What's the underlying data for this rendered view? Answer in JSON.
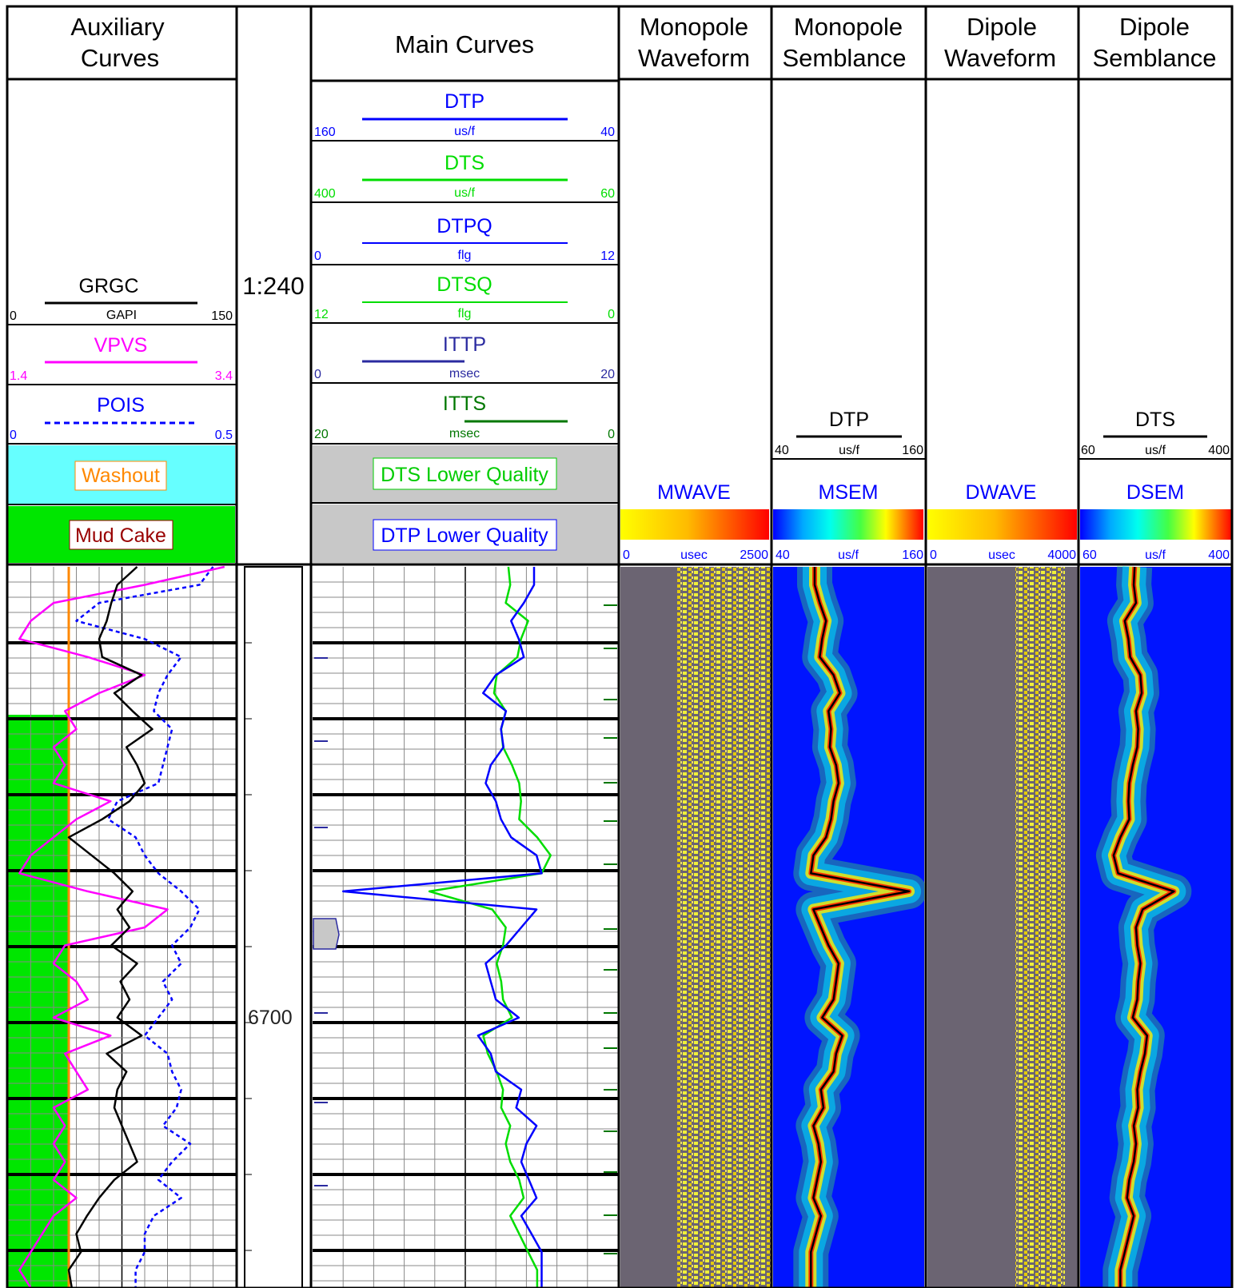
{
  "tracks": {
    "auxiliary": {
      "title_line1": "Auxiliary",
      "title_line2": "Curves"
    },
    "depth": {
      "scale": "1:240",
      "depth_label": "6700"
    },
    "main": {
      "title": "Main Curves"
    },
    "monopole_waveform": {
      "title_line1": "Monopole",
      "title_line2": "Waveform"
    },
    "monopole_semblance": {
      "title_line1": "Monopole",
      "title_line2": "Semblance"
    },
    "dipole_waveform": {
      "title_line1": "Dipole",
      "title_line2": "Waveform"
    },
    "dipole_semblance": {
      "title_line1": "Dipole",
      "title_line2": "Semblance"
    }
  },
  "aux_curves": [
    {
      "name": "GRGC",
      "unit": "GAPI",
      "min": "0",
      "max": "150",
      "color": "#000000"
    },
    {
      "name": "VPVS",
      "unit": "",
      "min": "1.4",
      "max": "3.4",
      "color": "#ff00ff"
    },
    {
      "name": "POIS",
      "unit": "",
      "min": "0",
      "max": "0.5",
      "color": "#0000ff"
    }
  ],
  "aux_flags": [
    {
      "label": "Washout",
      "fill": "#66ffff",
      "text_color": "#ff8800"
    },
    {
      "label": "Mud Cake",
      "fill": "#00e600",
      "text_color": "#990000"
    }
  ],
  "main_curves": [
    {
      "name": "DTP",
      "unit": "us/f",
      "min": "160",
      "max": "40",
      "color": "#0000ff"
    },
    {
      "name": "DTS",
      "unit": "us/f",
      "min": "400",
      "max": "60",
      "color": "#00dd00"
    },
    {
      "name": "DTPQ",
      "unit": "flg",
      "min": "0",
      "max": "12",
      "color": "#0000ff"
    },
    {
      "name": "DTSQ",
      "unit": "flg",
      "min": "12",
      "max": "0",
      "color": "#00dd00"
    },
    {
      "name": "ITTP",
      "unit": "msec",
      "min": "0",
      "max": "20",
      "color": "#2a2aa0"
    },
    {
      "name": "ITTS",
      "unit": "msec",
      "min": "20",
      "max": "0",
      "color": "#007700"
    }
  ],
  "main_flags": [
    {
      "label": "DTS Lower Quality",
      "text_color": "#00cc00"
    },
    {
      "label": "DTP Lower Quality",
      "text_color": "#0000ff"
    }
  ],
  "semblance_overlays": [
    {
      "name": "DTP",
      "unit": "us/f",
      "min": "40",
      "max": "160"
    },
    {
      "name": "DTS",
      "unit": "us/f",
      "min": "60",
      "max": "400"
    }
  ],
  "colorbars": [
    {
      "name": "MWAVE",
      "unit": "usec",
      "min": "0",
      "max": "2500",
      "palette": "yellow-red"
    },
    {
      "name": "MSEM",
      "unit": "us/f",
      "min": "40",
      "max": "160",
      "palette": "rainbow"
    },
    {
      "name": "DWAVE",
      "unit": "usec",
      "min": "0",
      "max": "4000",
      "palette": "yellow-red"
    },
    {
      "name": "DSEM",
      "unit": "us/f",
      "min": "60",
      "max": "400",
      "palette": "rainbow"
    }
  ],
  "colors": {
    "wave_background": "#6b6472",
    "semblance_background": "#0014ff",
    "flag_gray": "#c8c8c8",
    "washout_line": "#ff8800"
  },
  "chart_data": {
    "type": "line",
    "depth_samples": [
      0,
      0.025,
      0.05,
      0.075,
      0.1,
      0.125,
      0.15,
      0.175,
      0.2,
      0.225,
      0.25,
      0.275,
      0.3,
      0.325,
      0.35,
      0.375,
      0.4,
      0.425,
      0.45,
      0.475,
      0.5,
      0.525,
      0.55,
      0.575,
      0.6,
      0.625,
      0.65,
      0.675,
      0.7,
      0.725,
      0.75,
      0.775,
      0.8,
      0.825,
      0.85,
      0.875,
      0.9,
      0.925,
      0.95,
      0.975,
      1
    ],
    "series": [
      {
        "name": "GRGC",
        "track": "aux",
        "values": [
          85,
          72,
          68,
          65,
          60,
          62,
          88,
          70,
          82,
          95,
          78,
          85,
          90,
          80,
          62,
          40,
          55,
          70,
          82,
          72,
          80,
          68,
          85,
          74,
          80,
          72,
          88,
          65,
          78,
          72,
          70,
          75,
          80,
          85,
          70,
          60,
          52,
          45,
          48,
          40,
          42
        ]
      },
      {
        "name": "VPVS",
        "track": "aux",
        "values": [
          3.3,
          2.6,
          1.8,
          1.6,
          1.5,
          2.1,
          2.6,
          2.2,
          1.9,
          2.0,
          1.8,
          1.9,
          1.8,
          2.3,
          2.0,
          1.8,
          1.6,
          1.5,
          2.1,
          2.8,
          2.6,
          1.9,
          1.8,
          2.0,
          2.1,
          1.8,
          2.3,
          1.9,
          2.0,
          2.1,
          1.8,
          1.9,
          1.8,
          1.9,
          1.8,
          2.0,
          1.8,
          1.7,
          1.6,
          1.5,
          1.6
        ]
      },
      {
        "name": "POIS",
        "track": "aux",
        "values": [
          0.45,
          0.42,
          0.2,
          0.15,
          0.3,
          0.38,
          0.35,
          0.33,
          0.32,
          0.36,
          0.35,
          0.34,
          0.33,
          0.24,
          0.22,
          0.28,
          0.3,
          0.33,
          0.38,
          0.42,
          0.4,
          0.36,
          0.38,
          0.34,
          0.36,
          0.33,
          0.3,
          0.35,
          0.36,
          0.38,
          0.37,
          0.34,
          0.4,
          0.36,
          0.33,
          0.38,
          0.32,
          0.3,
          0.3,
          0.28,
          0.28
        ]
      },
      {
        "name": "DTP",
        "track": "main",
        "values": [
          73,
          73,
          77,
          82,
          79,
          77,
          88,
          93,
          84,
          86,
          85,
          90,
          92,
          88,
          86,
          82,
          72,
          70,
          148,
          72,
          78,
          84,
          92,
          90,
          88,
          79,
          95,
          90,
          88,
          78,
          80,
          72,
          76,
          78,
          75,
          72,
          78,
          74,
          70,
          70,
          70
        ]
      },
      {
        "name": "DTS",
        "track": "main",
        "values": [
          182,
          180,
          185,
          160,
          168,
          172,
          195,
          198,
          185,
          190,
          188,
          178,
          170,
          168,
          170,
          150,
          135,
          145,
          270,
          200,
          185,
          188,
          195,
          190,
          188,
          178,
          210,
          205,
          195,
          188,
          190,
          180,
          185,
          180,
          170,
          165,
          180,
          170,
          160,
          150,
          150
        ]
      }
    ]
  }
}
